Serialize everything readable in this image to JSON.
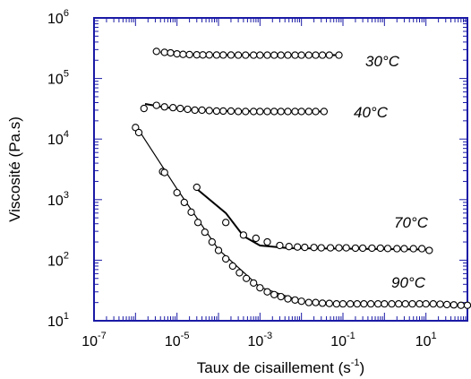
{
  "chart_data": {
    "type": "scatter",
    "xlabel": "Taux de cisaillement (s",
    "xlabel_sup": "-1",
    "xlabel_close": ")",
    "ylabel": "Viscosité (Pa.s)",
    "xscale": "log",
    "yscale": "log",
    "xlim": [
      1e-07,
      100
    ],
    "ylim": [
      10,
      1000000
    ],
    "x_ticks": [
      {
        "base": "10",
        "exp": "-7",
        "value": 1e-07
      },
      {
        "base": "10",
        "exp": "-5",
        "value": 1e-05
      },
      {
        "base": "10",
        "exp": "-3",
        "value": 0.001
      },
      {
        "base": "10",
        "exp": "-1",
        "value": 0.1
      },
      {
        "base": "10",
        "exp": "1",
        "value": 10
      }
    ],
    "y_ticks": [
      {
        "base": "10",
        "exp": "1",
        "value": 10
      },
      {
        "base": "10",
        "exp": "2",
        "value": 100
      },
      {
        "base": "10",
        "exp": "3",
        "value": 1000
      },
      {
        "base": "10",
        "exp": "4",
        "value": 10000
      },
      {
        "base": "10",
        "exp": "5",
        "value": 100000
      },
      {
        "base": "10",
        "exp": "6",
        "value": 1000000
      }
    ],
    "frame_color": "#1a1aa6",
    "marker": "open-circle",
    "fit_lines": true,
    "series": [
      {
        "name": "30°C",
        "x": [
          3.2e-06,
          5e-06,
          7e-06,
          1e-05,
          1.4e-05,
          2e-05,
          3e-05,
          4.2e-05,
          6e-05,
          9e-05,
          0.00013,
          0.0002,
          0.0003,
          0.00045,
          0.0007,
          0.001,
          0.0015,
          0.0022,
          0.0032,
          0.0047,
          0.007,
          0.01,
          0.015,
          0.022,
          0.032,
          0.047,
          0.08
        ],
        "y": [
          280000,
          270000,
          265000,
          255000,
          250000,
          248000,
          246000,
          245000,
          245000,
          244000,
          244000,
          244000,
          243000,
          243000,
          243000,
          243000,
          243000,
          243000,
          243000,
          243000,
          243000,
          243000,
          243000,
          243000,
          243000,
          243000,
          243000
        ],
        "fit": [
          [
            4e-06,
            270000
          ],
          [
            2e-05,
            250000
          ],
          [
            0.0001,
            245000
          ],
          [
            0.01,
            243000
          ],
          [
            0.08,
            243000
          ]
        ]
      },
      {
        "name": "40°C",
        "x": [
          1.6e-06,
          3.2e-06,
          5e-06,
          8e-06,
          1.2e-05,
          1.8e-05,
          2.7e-05,
          4e-05,
          6e-05,
          9e-05,
          0.00013,
          0.0002,
          0.0003,
          0.00045,
          0.0007,
          0.001,
          0.0015,
          0.0022,
          0.0032,
          0.0047,
          0.007,
          0.01,
          0.015,
          0.022,
          0.035
        ],
        "y": [
          32000,
          36000,
          34000,
          33000,
          32000,
          31000,
          30000,
          30000,
          29500,
          29000,
          29000,
          29000,
          28500,
          28500,
          28500,
          28500,
          28500,
          28500,
          28500,
          28500,
          28500,
          28500,
          28500,
          28500,
          28500
        ],
        "fit": [
          [
            1.7e-06,
            38000
          ],
          [
            5e-06,
            33500
          ],
          [
            2e-05,
            30500
          ],
          [
            0.0001,
            29000
          ],
          [
            0.035,
            28500
          ]
        ]
      },
      {
        "name": "70°C",
        "x": [
          3e-05,
          0.00015,
          0.0004,
          0.0008,
          0.0015,
          0.003,
          0.005,
          0.008,
          0.012,
          0.02,
          0.03,
          0.05,
          0.08,
          0.12,
          0.2,
          0.3,
          0.5,
          0.8,
          1.2,
          2,
          3,
          5,
          8,
          12
        ],
        "y": [
          1600,
          420,
          260,
          230,
          200,
          175,
          168,
          165,
          163,
          162,
          160,
          160,
          160,
          160,
          158,
          158,
          158,
          158,
          156,
          155,
          155,
          155,
          155,
          145
        ],
        "fit": [
          [
            3e-05,
            1500
          ],
          [
            0.00015,
            600
          ],
          [
            0.0004,
            250
          ],
          [
            0.001,
            175
          ],
          [
            0.005,
            158
          ],
          [
            0.1,
            155
          ],
          [
            12,
            150
          ]
        ]
      },
      {
        "name": "90°C",
        "x": [
          1e-06,
          1.2e-06,
          4.5e-06,
          5e-06,
          1e-05,
          1.5e-05,
          2.2e-05,
          3.2e-05,
          4.7e-05,
          7e-05,
          0.0001,
          0.00015,
          0.00022,
          0.00032,
          0.00047,
          0.0007,
          0.001,
          0.0015,
          0.0022,
          0.0032,
          0.0047,
          0.007,
          0.01,
          0.015,
          0.022,
          0.032,
          0.047,
          0.07,
          0.1,
          0.15,
          0.22,
          0.32,
          0.47,
          0.7,
          1,
          1.5,
          2.2,
          3.2,
          4.7,
          7,
          10,
          15,
          22,
          32,
          47,
          70,
          100
        ],
        "y": [
          15500,
          12800,
          2900,
          2800,
          1300,
          900,
          620,
          420,
          290,
          200,
          145,
          105,
          80,
          62,
          50,
          42,
          35,
          30,
          27,
          25,
          23,
          22,
          21,
          20,
          20,
          19.5,
          19.3,
          19,
          19,
          19,
          19,
          19,
          19,
          19,
          19,
          19,
          19,
          19,
          19,
          19,
          19,
          19,
          18.8,
          18.5,
          18.3,
          18,
          18
        ],
        "fit": [
          [
            1e-06,
            17000
          ],
          [
            1e-05,
            1500
          ],
          [
            0.0001,
            150
          ],
          [
            0.001,
            36
          ],
          [
            0.01,
            21
          ],
          [
            0.1,
            19
          ],
          [
            100,
            18
          ]
        ]
      }
    ]
  }
}
